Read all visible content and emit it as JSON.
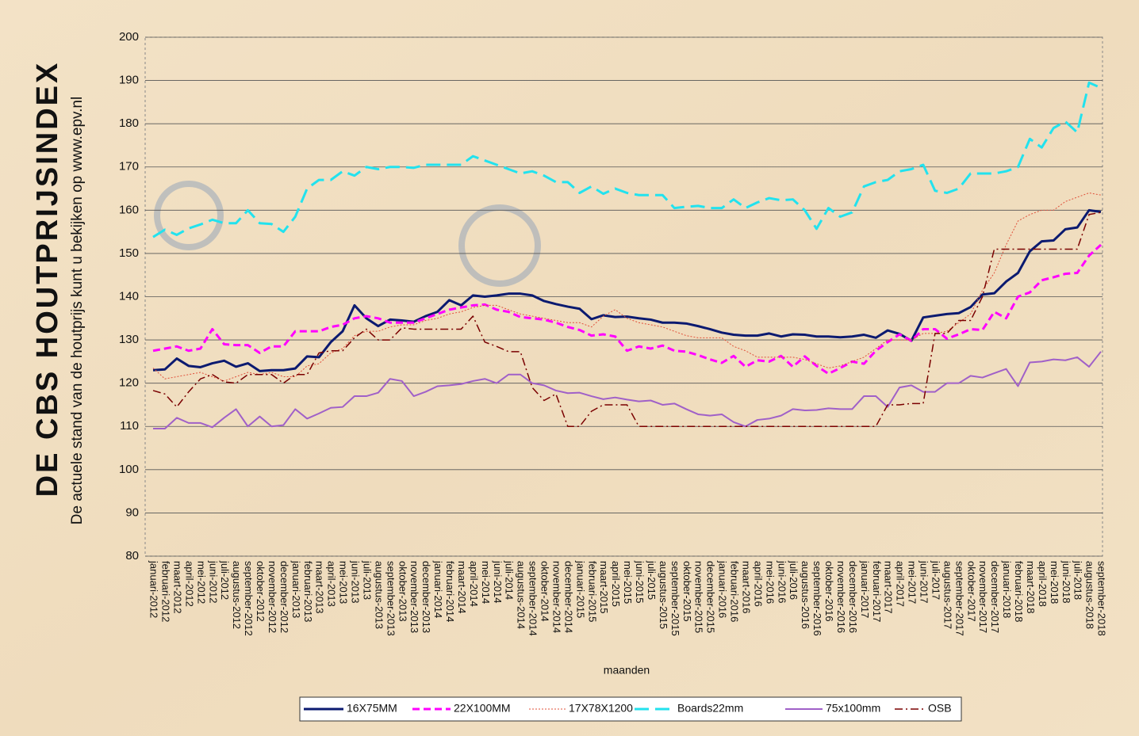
{
  "chart_data": {
    "type": "line",
    "title": "DE CBS HOUTPRIJSINDEX",
    "subtitle": "De actuele stand van de houtprijs kunt u bekijken op www.epv.nl",
    "x_label": "maanden",
    "categories": [
      "januari-2012",
      "februari-2012",
      "maart-2012",
      "april-2012",
      "mei-2012",
      "juni-2012",
      "juli-2012",
      "augustus-2012",
      "september-2012",
      "oktober-2012",
      "november-2012",
      "december-2012",
      "januari-2013",
      "februari-2013",
      "maart-2013",
      "april-2013",
      "mei-2013",
      "juni-2013",
      "juli-2013",
      "augustus-2013",
      "september-2013",
      "oktober-2013",
      "november-2013",
      "december-2013",
      "januari-2014",
      "februari-2014",
      "maart-2014",
      "april-2014",
      "mei-2014",
      "juni-2014",
      "juli-2014",
      "augustus-2014",
      "september-2014",
      "oktober-2014",
      "november-2014",
      "december-2014",
      "januari-2015",
      "februari-2015",
      "maart-2015",
      "april-2015",
      "mei-2015",
      "juni-2015",
      "juli-2015",
      "augustus-2015",
      "september-2015",
      "oktober-2015",
      "november-2015",
      "december-2015",
      "januari-2016",
      "februari-2016",
      "maart-2016",
      "april-2016",
      "mei-2016",
      "juni-2016",
      "juli-2016",
      "augustus-2016",
      "september-2016",
      "oktober-2016",
      "november-2016",
      "december-2016",
      "januari-2017",
      "februari-2017",
      "maart-2017",
      "april-2017",
      "mei-2017",
      "juni-2017",
      "juli-2017",
      "augustus-2017",
      "september-2017",
      "oktober-2017",
      "november-2017",
      "december-2017",
      "januari-2018",
      "februari-2018",
      "maart-2018",
      "april-2018",
      "mei-2018",
      "juni-2018",
      "juli-2018",
      "augustus-2018",
      "september-2018"
    ],
    "series": [
      {
        "name": "16X75MM",
        "color": "#0b1a70",
        "width": 3,
        "dash": "none",
        "values": [
          123,
          123.2,
          125.7,
          124,
          123.7,
          124.6,
          125.2,
          123.8,
          124.6,
          122.8,
          123,
          123,
          123.4,
          126.2,
          126,
          129.5,
          132,
          138,
          135,
          133.2,
          134.7,
          134.5,
          134.2,
          135.5,
          136.5,
          139.2,
          138,
          140.3,
          140,
          140.3,
          140.7,
          140.7,
          140.3,
          139,
          138.3,
          137.7,
          137.2,
          134.8,
          135.7,
          135.3,
          135.4,
          135,
          134.7,
          134,
          134,
          133.8,
          133.2,
          132.5,
          131.7,
          131.2,
          131,
          131,
          131.5,
          130.8,
          131.3,
          131.2,
          130.8,
          130.8,
          130.6,
          130.8,
          131.2,
          130.5,
          132.2,
          131.4,
          129.8,
          135.2,
          135.6,
          136,
          136.2,
          137.6,
          140.5,
          140.8,
          143.5,
          145.5,
          150.5,
          152.8,
          153,
          155.6,
          156,
          160,
          159.6
        ]
      },
      {
        "name": "22X100MM",
        "color": "#ff00ff",
        "width": 3,
        "dash": "9 5",
        "values": [
          127.5,
          128,
          128.5,
          127.5,
          128,
          132.5,
          129,
          128.8,
          128.8,
          127,
          128.5,
          128.5,
          132,
          132,
          132,
          133,
          133.5,
          135,
          135.5,
          135,
          134,
          134,
          134,
          135,
          136,
          137,
          137.5,
          138,
          138.2,
          137,
          136.5,
          135.3,
          135,
          134.7,
          134,
          133,
          132.3,
          131,
          131.3,
          130.8,
          127.5,
          128.5,
          128,
          128.7,
          127.5,
          127.3,
          126.5,
          125.5,
          124.7,
          126.3,
          123.8,
          125.3,
          125,
          126.3,
          123.8,
          126.2,
          124,
          122.2,
          123.5,
          125,
          124.5,
          127.5,
          129.5,
          131.3,
          129.8,
          132.5,
          132.5,
          130.3,
          131.3,
          132.5,
          132.3,
          136.5,
          135,
          140,
          141,
          143.8,
          144.5,
          145.3,
          145.5,
          149.5,
          152
        ]
      },
      {
        "name": "17X78X1200",
        "color": "#e0503a",
        "width": 1,
        "dash": "2 2",
        "values": [
          123.5,
          121,
          121.5,
          122,
          122.5,
          121.5,
          120.5,
          121.5,
          122.5,
          122,
          122.5,
          121.5,
          121.5,
          124,
          124.5,
          127,
          128,
          131,
          132,
          132,
          133,
          133.5,
          133.5,
          134.5,
          135,
          136,
          136.5,
          137.5,
          138,
          138,
          137,
          136,
          135.5,
          135,
          134.5,
          134,
          134,
          133,
          135.5,
          137,
          135,
          134,
          133.5,
          133,
          132,
          131,
          130.5,
          130.5,
          130.5,
          128.5,
          127.5,
          126,
          126,
          126,
          126,
          125.5,
          124.5,
          123.5,
          124,
          125,
          126,
          128,
          130,
          130,
          130,
          131.5,
          131.5,
          132,
          134,
          136,
          141.5,
          145.5,
          152,
          157.5,
          159,
          160,
          160,
          162,
          163,
          164,
          163.5
        ]
      },
      {
        "name": "Boards22mm",
        "color": "#22e2ee",
        "width": 3,
        "dash": "18 8",
        "values": [
          153.8,
          155.5,
          154.3,
          155.8,
          156.7,
          157.8,
          157,
          157,
          160,
          157,
          156.8,
          155,
          158.5,
          165,
          167,
          167,
          169,
          168,
          170,
          169.5,
          170,
          170,
          169.8,
          170.5,
          170.5,
          170.5,
          170.5,
          172.5,
          171.5,
          170.5,
          169.5,
          168.5,
          169,
          168,
          166.5,
          166.5,
          164,
          165.5,
          163.8,
          165,
          164,
          163.5,
          163.5,
          163.5,
          160.5,
          160.8,
          161,
          160.5,
          160.5,
          162.5,
          160.5,
          161.8,
          162.8,
          162.3,
          162.5,
          160,
          155.7,
          160.5,
          158.5,
          159.5,
          165.5,
          166.5,
          167,
          169,
          169.5,
          170.5,
          164.5,
          164,
          165,
          168.5,
          168.5,
          168.5,
          169,
          170,
          176.5,
          174.5,
          179,
          180.5,
          178,
          189.5,
          188.3
        ]
      },
      {
        "name": "75x100mm",
        "color": "#a060c8",
        "width": 2,
        "dash": "none",
        "values": [
          109.5,
          109.5,
          112,
          110.8,
          110.8,
          109.8,
          112,
          114,
          110,
          112.3,
          110,
          110.3,
          114,
          111.8,
          113,
          114.3,
          114.5,
          117,
          117,
          117.8,
          121,
          120.5,
          117,
          118,
          119.3,
          119.5,
          119.8,
          120.5,
          121,
          120,
          122,
          122,
          120,
          119.5,
          118.3,
          117.7,
          117.8,
          117,
          116.3,
          116.7,
          116.2,
          115.8,
          116,
          115,
          115.3,
          114,
          112.8,
          112.5,
          112.8,
          111,
          110,
          111.5,
          111.8,
          112.5,
          114,
          113.7,
          113.8,
          114.2,
          114,
          114,
          117,
          117,
          114.5,
          119,
          119.5,
          118,
          118,
          120,
          120,
          121.7,
          121.3,
          122.3,
          123.3,
          119.3,
          124.8,
          125,
          125.5,
          125.3,
          126,
          123.8,
          127.3
        ]
      },
      {
        "name": "OSB",
        "color": "#7a0000",
        "width": 1.5,
        "dash": "10 4 2 4",
        "values": [
          118.3,
          117.5,
          114.5,
          118,
          121,
          122,
          120.3,
          120,
          122,
          122,
          122,
          120,
          122,
          122,
          127,
          127.5,
          127.5,
          130.5,
          132.5,
          130,
          130,
          132.8,
          132.5,
          132.5,
          132.5,
          132.5,
          132.5,
          135.5,
          129.5,
          128.5,
          127.3,
          127.3,
          119,
          116,
          117.5,
          110,
          110,
          113.5,
          115,
          115,
          115,
          110,
          110,
          110,
          110,
          110,
          110,
          110,
          110,
          110,
          110,
          110,
          110,
          110,
          110,
          110,
          110,
          110,
          110,
          110,
          110,
          110,
          115,
          115,
          115.3,
          115.3,
          131.5,
          131.5,
          134.5,
          134.5,
          140,
          151,
          151,
          151,
          151,
          151,
          151,
          151,
          151,
          159,
          159.5
        ]
      }
    ],
    "ylim": [
      80,
      200
    ],
    "yticks": [
      80,
      90,
      100,
      110,
      120,
      130,
      140,
      150,
      160,
      170,
      180,
      190,
      200
    ],
    "grid": true,
    "legend": "bottom"
  }
}
